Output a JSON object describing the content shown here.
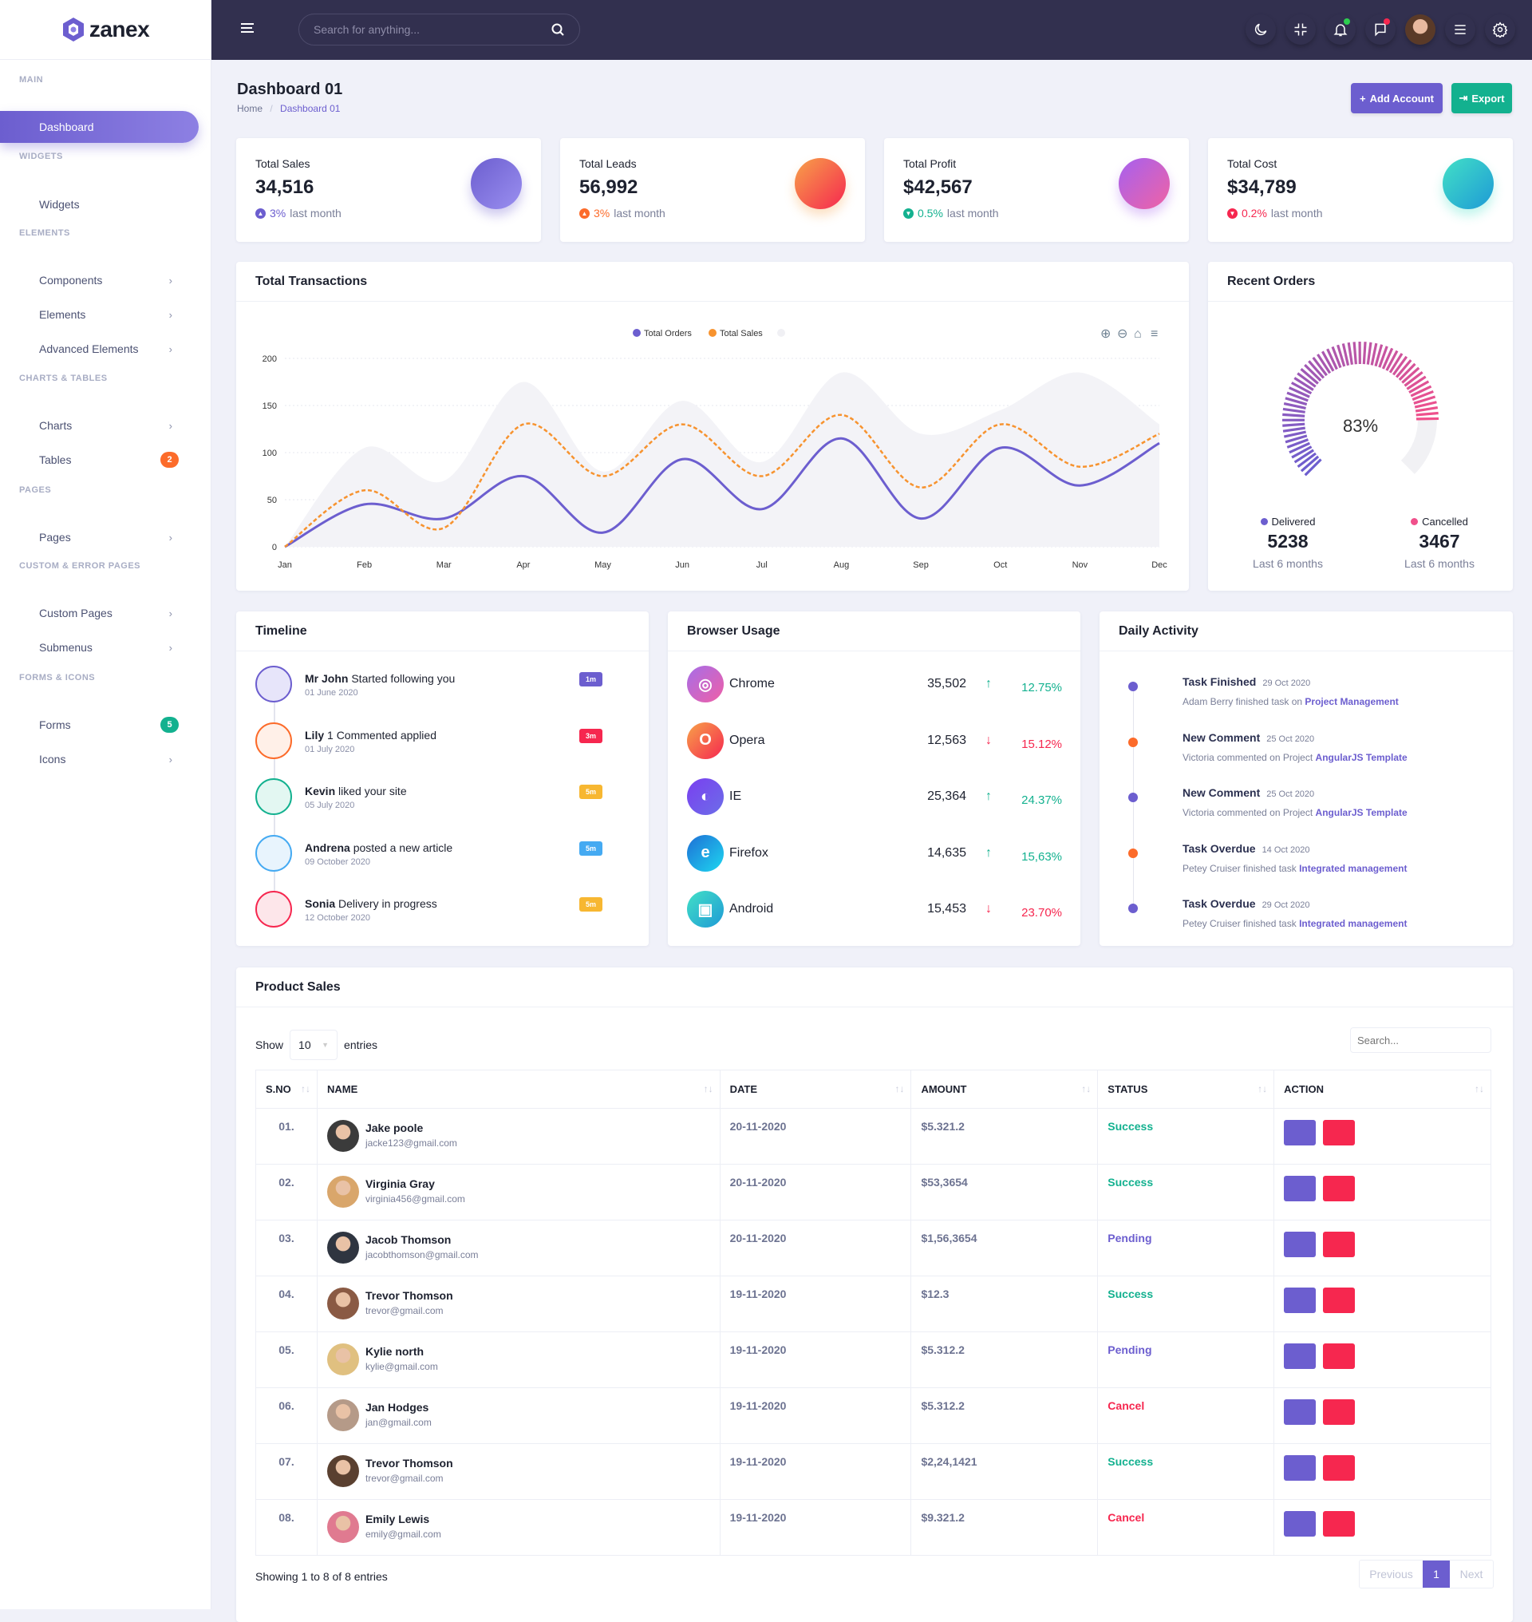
{
  "brand": {
    "name": "zanex",
    "color": "#6c5ecf"
  },
  "colors": {
    "primary": "#6c5ecf",
    "success": "#13b18f",
    "danger": "#f6274f",
    "warning": "#f7b731",
    "orange": "#fc6b2a",
    "info": "#45aaf2",
    "header": "#32304f"
  },
  "header": {
    "search_placeholder": "Search for anything...",
    "icons": [
      "moon-icon",
      "minimize-icon",
      "bell-icon",
      "chat-icon",
      "avatar",
      "menu-icon",
      "gear-icon"
    ]
  },
  "sidebar": {
    "sections": [
      {
        "title": "MAIN",
        "items": [
          {
            "label": "Dashboard",
            "icon": "home-icon",
            "active": true
          }
        ]
      },
      {
        "title": "WIDGETS",
        "items": [
          {
            "label": "Widgets",
            "icon": "grid-icon"
          }
        ]
      },
      {
        "title": "ELEMENTS",
        "items": [
          {
            "label": "Components",
            "icon": "database-icon",
            "chevron": true
          },
          {
            "label": "Elements",
            "icon": "box-icon",
            "chevron": true
          },
          {
            "label": "Advanced Elements",
            "icon": "file-icon",
            "chevron": true
          }
        ]
      },
      {
        "title": "CHARTS & TABLES",
        "items": [
          {
            "label": "Charts",
            "icon": "pie-chart-icon",
            "chevron": true
          },
          {
            "label": "Tables",
            "icon": "clipboard-icon",
            "badge": "2",
            "badge_color": "#fc6b2a"
          }
        ]
      },
      {
        "title": "PAGES",
        "items": [
          {
            "label": "Pages",
            "icon": "layers-icon",
            "chevron": true
          }
        ]
      },
      {
        "title": "CUSTOM & ERROR PAGES",
        "items": [
          {
            "label": "Custom Pages",
            "icon": "settings-icon",
            "chevron": true
          },
          {
            "label": "Submenus",
            "icon": "sliders-icon",
            "chevron": true
          }
        ]
      },
      {
        "title": "FORMS & ICONS",
        "items": [
          {
            "label": "Forms",
            "icon": "file-text-icon",
            "badge": "5",
            "badge_color": "#13b18f"
          },
          {
            "label": "Icons",
            "icon": "command-icon",
            "chevron": true
          }
        ]
      }
    ]
  },
  "page": {
    "title": "Dashboard 01",
    "breadcrumb": [
      "Home",
      "Dashboard 01"
    ],
    "add_account": "Add Account",
    "export": "Export"
  },
  "stats": [
    {
      "label": "Total Sales",
      "value": "34,516",
      "change": "3%",
      "suffix": "last month",
      "trend": "up",
      "change_color": "#6c5ecf",
      "icon": "trending-up-icon",
      "gradient": [
        "#6c5ecf",
        "#9a8ff0"
      ]
    },
    {
      "label": "Total Leads",
      "value": "56,992",
      "change": "3%",
      "suffix": "last month",
      "trend": "up",
      "change_color": "#fc6b2a",
      "icon": "rocket-icon",
      "gradient": [
        "#f7a249",
        "#f6274f"
      ]
    },
    {
      "label": "Total Profit",
      "value": "$42,567",
      "change": "0.5%",
      "suffix": "last month",
      "trend": "down",
      "change_color": "#13b18f",
      "icon": "dollar-icon",
      "gradient": [
        "#a561f0",
        "#f062a4"
      ]
    },
    {
      "label": "Total Cost",
      "value": "$34,789",
      "change": "0.2%",
      "suffix": "last month",
      "trend": "down",
      "change_color": "#f6274f",
      "icon": "briefcase-icon",
      "gradient": [
        "#42e0c6",
        "#1e9ad6"
      ]
    }
  ],
  "transactions": {
    "title": "Total Transactions",
    "toolbar": [
      "zoom-in-icon",
      "zoom-out-icon",
      "home-icon",
      "menu-icon"
    ]
  },
  "chart_data": {
    "type": "line",
    "categories": [
      "Jan",
      "Feb",
      "Mar",
      "Apr",
      "May",
      "Jun",
      "Jul",
      "Aug",
      "Sep",
      "Oct",
      "Nov",
      "Dec"
    ],
    "ylim": [
      0,
      200
    ],
    "yticks": [
      0,
      50,
      100,
      150,
      200
    ],
    "grid": true,
    "legend": "top-center",
    "series": [
      {
        "name": "Total Orders",
        "color": "#6c5ecf",
        "style": "solid",
        "values": [
          0,
          45,
          30,
          75,
          15,
          93,
          40,
          115,
          30,
          105,
          65,
          110
        ]
      },
      {
        "name": "Total Sales",
        "color": "#f7932f",
        "style": "dashed",
        "values": [
          0,
          60,
          20,
          130,
          75,
          130,
          75,
          140,
          63,
          130,
          85,
          120
        ]
      },
      {
        "name": "",
        "color": "#f3f3f7",
        "style": "area",
        "values": [
          0,
          105,
          70,
          175,
          80,
          155,
          90,
          185,
          120,
          145,
          185,
          130
        ]
      }
    ]
  },
  "recent_orders": {
    "title": "Recent Orders",
    "percent": 83,
    "percent_label": "83%",
    "delivered": {
      "label": "Delivered",
      "value": "5238",
      "sub": "Last 6 months",
      "color": "#6c5ecf"
    },
    "cancelled": {
      "label": "Cancelled",
      "value": "3467",
      "sub": "Last 6 months",
      "color": "#f0508b"
    }
  },
  "timeline": {
    "title": "Timeline",
    "items": [
      {
        "name": "Mr John",
        "text": "Started following you",
        "date": "01 June 2020",
        "badge": "1m",
        "color": "#6c5ecf",
        "bg": "#e7e5fa",
        "icon": "user-plus-icon"
      },
      {
        "name": "Lily",
        "text": "1 Commented applied",
        "date": "01 July 2020",
        "badge": "3m",
        "color": "#fc6b2a",
        "bg": "#fff0e8",
        "icon": "comment-icon",
        "badge_color": "#f6274f"
      },
      {
        "name": "Kevin",
        "text": "liked your site",
        "date": "05 July 2020",
        "badge": "5m",
        "color": "#13b18f",
        "bg": "#e3f7f2",
        "icon": "thumbs-up-icon",
        "badge_color": "#f7b731"
      },
      {
        "name": "Andrena",
        "text": "posted a new article",
        "date": "09 October 2020",
        "badge": "5m",
        "color": "#45aaf2",
        "bg": "#e8f4fd",
        "icon": "mail-icon",
        "badge_color": "#45aaf2"
      },
      {
        "name": "Sonia",
        "text": "Delivery in progress",
        "date": "12 October 2020",
        "badge": "5m",
        "color": "#f6274f",
        "bg": "#fde6ea",
        "icon": "shopping-bag-icon",
        "badge_color": "#f7b731"
      }
    ]
  },
  "browser": {
    "title": "Browser Usage",
    "items": [
      {
        "name": "Chrome",
        "value": "35,502",
        "change": "12.75%",
        "trend": "up",
        "icon": "chrome-icon",
        "gradient": [
          "#a66ee8",
          "#ef5fa7"
        ]
      },
      {
        "name": "Opera",
        "value": "12,563",
        "change": "15.12%",
        "trend": "down",
        "icon": "opera-icon",
        "gradient": [
          "#f7a249",
          "#f6274f"
        ]
      },
      {
        "name": "IE",
        "value": "25,364",
        "change": "24.37%",
        "trend": "up",
        "icon": "firefox-icon",
        "gradient": [
          "#7a3ff0",
          "#6c6ee8"
        ]
      },
      {
        "name": "Firefox",
        "value": "14,635",
        "change": "15,63%",
        "trend": "up",
        "icon": "edge-icon",
        "gradient": [
          "#1e6fd6",
          "#1ed7f0"
        ]
      },
      {
        "name": "Android",
        "value": "15,453",
        "change": "23.70%",
        "trend": "down",
        "icon": "android-icon",
        "gradient": [
          "#42e0c6",
          "#1e9ad6"
        ]
      }
    ]
  },
  "activity": {
    "title": "Daily Activity",
    "items": [
      {
        "title": "Task Finished",
        "date": "29 Oct 2020",
        "text": "Adam Berry finished task on",
        "link": "Project Management",
        "color": "#6c5ecf"
      },
      {
        "title": "New Comment",
        "date": "25 Oct 2020",
        "text": "Victoria commented on Project",
        "link": "AngularJS Template",
        "color": "#fc6b2a"
      },
      {
        "title": "New Comment",
        "date": "25 Oct 2020",
        "text": "Victoria commented on Project",
        "link": "AngularJS Template",
        "color": "#6c5ecf"
      },
      {
        "title": "Task Overdue",
        "date": "14 Oct 2020",
        "text": "Petey Cruiser finished task",
        "link": "Integrated management",
        "color": "#fc6b2a"
      },
      {
        "title": "Task Overdue",
        "date": "29 Oct 2020",
        "text": "Petey Cruiser finished task",
        "link": "Integrated management",
        "color": "#6c5ecf"
      }
    ]
  },
  "products": {
    "title": "Product Sales",
    "show_label": "Show",
    "entries_value": "10",
    "entries_label": "entries",
    "search_placeholder": "Search...",
    "columns": [
      "S.NO",
      "NAME",
      "DATE",
      "AMOUNT",
      "STATUS",
      "ACTION"
    ],
    "rows": [
      {
        "sno": "01.",
        "name": "Jake poole",
        "email": "jacke123@gmail.com",
        "date": "20-11-2020",
        "amount": "$5.321.2",
        "status": "Success"
      },
      {
        "sno": "02.",
        "name": "Virginia Gray",
        "email": "virginia456@gmail.com",
        "date": "20-11-2020",
        "amount": "$53,3654",
        "status": "Success"
      },
      {
        "sno": "03.",
        "name": "Jacob Thomson",
        "email": "jacobthomson@gmail.com",
        "date": "20-11-2020",
        "amount": "$1,56,3654",
        "status": "Pending"
      },
      {
        "sno": "04.",
        "name": "Trevor Thomson",
        "email": "trevor@gmail.com",
        "date": "19-11-2020",
        "amount": "$12.3",
        "status": "Success"
      },
      {
        "sno": "05.",
        "name": "Kylie north",
        "email": "kylie@gmail.com",
        "date": "19-11-2020",
        "amount": "$5.312.2",
        "status": "Pending"
      },
      {
        "sno": "06.",
        "name": "Jan Hodges",
        "email": "jan@gmail.com",
        "date": "19-11-2020",
        "amount": "$5.312.2",
        "status": "Cancel"
      },
      {
        "sno": "07.",
        "name": "Trevor Thomson",
        "email": "trevor@gmail.com",
        "date": "19-11-2020",
        "amount": "$2,24,1421",
        "status": "Success"
      },
      {
        "sno": "08.",
        "name": "Emily Lewis",
        "email": "emily@gmail.com",
        "date": "19-11-2020",
        "amount": "$9.321.2",
        "status": "Cancel"
      }
    ],
    "status_colors": {
      "Success": "#13b18f",
      "Pending": "#6c5ecf",
      "Cancel": "#f6274f"
    },
    "footer": "Showing 1 to 8 of 8 entries",
    "pagination": {
      "previous": "Previous",
      "current": "1",
      "next": "Next"
    }
  }
}
